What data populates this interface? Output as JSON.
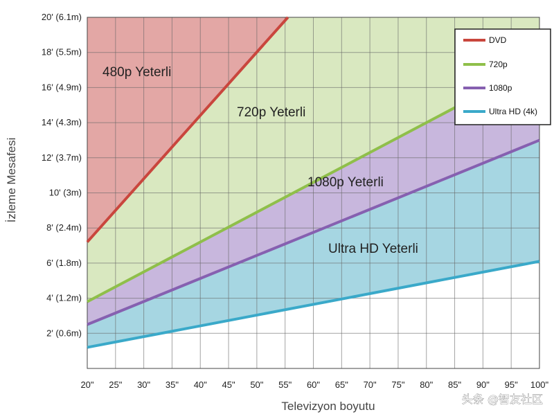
{
  "chart_data": {
    "type": "area",
    "title": "",
    "xlabel": "Televizyon boyutu",
    "ylabel": "İzleme Mesafesi",
    "x": [
      20,
      25,
      30,
      35,
      40,
      45,
      50,
      55,
      60,
      65,
      70,
      75,
      80,
      85,
      90,
      95,
      100
    ],
    "xlim": [
      20,
      100
    ],
    "ylim": [
      0,
      20
    ],
    "x_ticks": [
      "20\"",
      "25\"",
      "30\"",
      "35\"",
      "40\"",
      "45\"",
      "50\"",
      "55\"",
      "60\"",
      "65\"",
      "70\"",
      "75\"",
      "80\"",
      "85\"",
      "90\"",
      "95\"",
      "100\""
    ],
    "y_ticks": [
      {
        "value": 2,
        "label": "2' (0.6m)"
      },
      {
        "value": 4,
        "label": "4' (1.2m)"
      },
      {
        "value": 6,
        "label": "6' (1.8m)"
      },
      {
        "value": 8,
        "label": "8' (2.4m)"
      },
      {
        "value": 10,
        "label": "10' (3m)"
      },
      {
        "value": 12,
        "label": "12' (3.7m)"
      },
      {
        "value": 14,
        "label": "14' (4.3m)"
      },
      {
        "value": 16,
        "label": "16' (4.9m)"
      },
      {
        "value": 18,
        "label": "18' (5.5m)"
      },
      {
        "value": 20,
        "label": "20' (6.1m)"
      }
    ],
    "grid": true,
    "series": [
      {
        "name": "DVD",
        "color": "#c9463d",
        "points": [
          [
            20,
            7.2
          ],
          [
            55.5,
            20
          ]
        ]
      },
      {
        "name": "720p",
        "color": "#8fbf4a",
        "points": [
          [
            20,
            3.8
          ],
          [
            100,
            17.4
          ]
        ]
      },
      {
        "name": "1080p",
        "color": "#8660b0",
        "points": [
          [
            20,
            2.5
          ],
          [
            100,
            13.0
          ]
        ]
      },
      {
        "name": "Ultra HD (4k)",
        "color": "#3aa9c9",
        "points": [
          [
            20,
            1.2
          ],
          [
            100,
            6.1
          ]
        ]
      }
    ],
    "regions": [
      {
        "label": "480p Yeterli",
        "color": "#e3a7a5"
      },
      {
        "label": "720p Yeterli",
        "color": "#d9e8c0"
      },
      {
        "label": "1080p Yeterli",
        "color": "#c8b7dd"
      },
      {
        "label": "Ultra HD Yeterli",
        "color": "#a6d6e2"
      }
    ],
    "legend": {
      "position": "top-right"
    }
  },
  "watermark": "头条 @智友社区"
}
